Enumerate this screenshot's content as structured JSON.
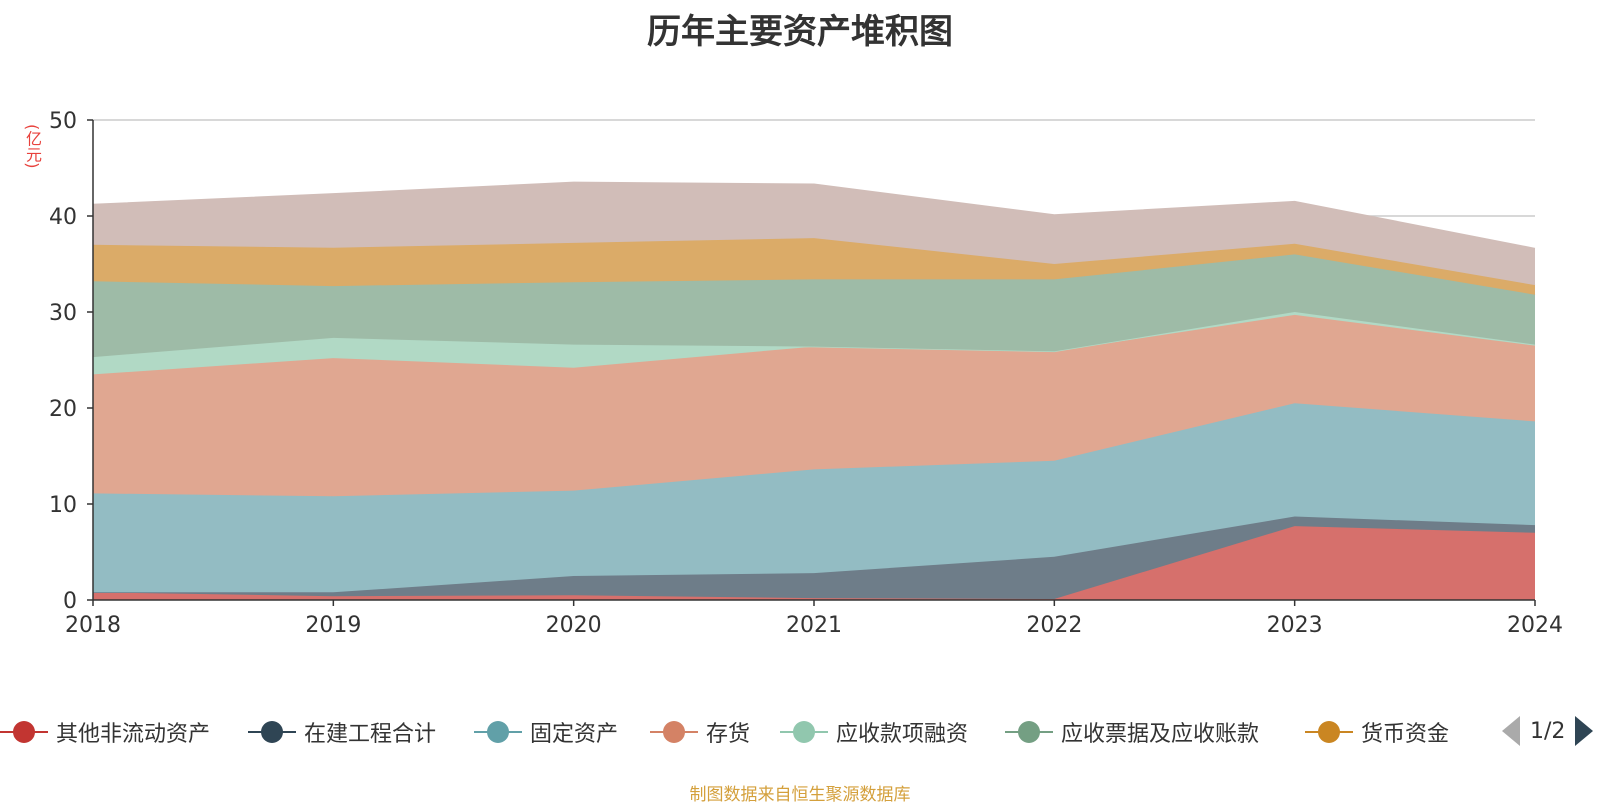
{
  "chart_data": {
    "type": "area",
    "title": "历年主要资产堆积图",
    "unit_label": "(亿元)",
    "x": [
      "2018",
      "2019",
      "2020",
      "2021",
      "2022",
      "2023",
      "2024"
    ],
    "ylim": [
      0,
      50
    ],
    "yticks": [
      0,
      10,
      20,
      30,
      40,
      50
    ],
    "grid": true,
    "stacked": true,
    "legend_position": "bottom",
    "series": [
      {
        "name": "其他非流动资产",
        "color": "#c23531",
        "fill": "#d6706c",
        "values": [
          0.8,
          0.4,
          0.5,
          0.2,
          0.1,
          7.7,
          7.0
        ]
      },
      {
        "name": "在建工程合计",
        "color": "#2f4554",
        "fill": "#6e7d89",
        "values": [
          0.0,
          0.4,
          2.0,
          2.6,
          4.4,
          1.0,
          0.8
        ]
      },
      {
        "name": "固定资产",
        "color": "#61a0a8",
        "fill": "#93bcc3",
        "values": [
          10.3,
          10.0,
          8.9,
          10.8,
          10.0,
          11.8,
          10.8
        ]
      },
      {
        "name": "存货",
        "color": "#d48265",
        "fill": "#e0a791",
        "values": [
          12.4,
          14.4,
          12.8,
          12.8,
          11.4,
          9.2,
          7.9
        ]
      },
      {
        "name": "应收款项融资",
        "color": "#91c7ae",
        "fill": "#b1d9c5",
        "values": [
          1.8,
          2.1,
          2.4,
          0.0,
          0.0,
          0.3,
          0.1
        ]
      },
      {
        "name": "应收票据及应收账款",
        "color": "#749f83",
        "fill": "#9ebba7",
        "values": [
          7.9,
          5.4,
          6.5,
          7.0,
          7.5,
          6.0,
          5.2
        ]
      },
      {
        "name": "货币资金",
        "color": "#ca8622",
        "fill": "#dbab68",
        "values": [
          3.8,
          4.0,
          4.1,
          4.3,
          1.6,
          1.1,
          1.0
        ]
      },
      {
        "name": "",
        "color": "#bda29a",
        "fill": "#d1bdb8",
        "values": [
          4.2,
          5.6,
          6.3,
          5.6,
          5.1,
          4.4,
          3.8
        ]
      }
    ]
  },
  "legend": {
    "items": [
      {
        "label": "其他非流动资产",
        "color": "#c23531"
      },
      {
        "label": "在建工程合计",
        "color": "#2f4554"
      },
      {
        "label": "固定资产",
        "color": "#61a0a8"
      },
      {
        "label": "存货",
        "color": "#d48265"
      },
      {
        "label": "应收款项融资",
        "color": "#91c7ae"
      },
      {
        "label": "应收票据及应收账款",
        "color": "#749f83"
      },
      {
        "label": "货币资金",
        "color": "#ca8622"
      }
    ],
    "page": "1/2"
  },
  "source_text": "制图数据来自恒生聚源数据库"
}
